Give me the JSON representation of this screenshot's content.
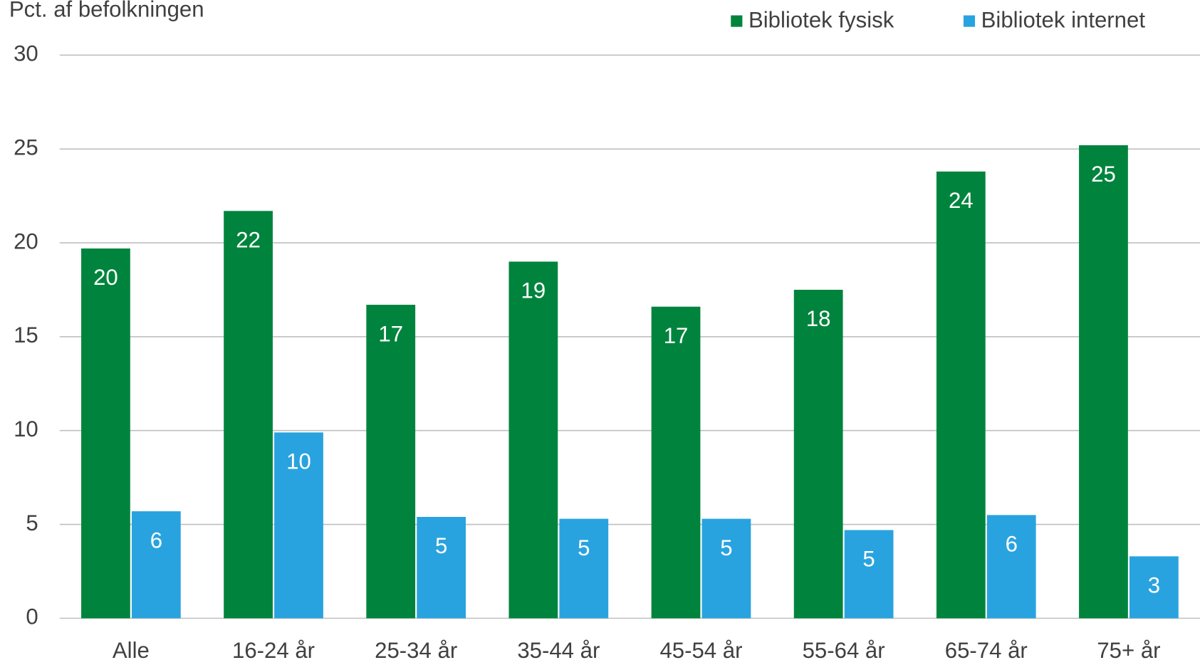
{
  "chart_data": {
    "type": "bar",
    "y_label": "Pct. af befolkningen",
    "categories": [
      "Alle",
      "16-24 år",
      "25-34 år",
      "35-44 år",
      "45-54 år",
      "55-64 år",
      "65-74 år",
      "75+ år"
    ],
    "series": [
      {
        "name": "Bibliotek fysisk",
        "color": "#00843d",
        "values": [
          19.7,
          21.7,
          16.7,
          19.0,
          16.6,
          17.5,
          23.8,
          25.2
        ],
        "value_labels": [
          "20",
          "22",
          "17",
          "19",
          "17",
          "18",
          "24",
          "25"
        ]
      },
      {
        "name": "Bibliotek internet",
        "color": "#29a3df",
        "values": [
          5.7,
          9.9,
          5.4,
          5.3,
          5.3,
          4.7,
          5.5,
          3.3
        ],
        "value_labels": [
          "6",
          "10",
          "5",
          "5",
          "5",
          "5",
          "6",
          "3"
        ]
      }
    ],
    "ylim": [
      0,
      30
    ],
    "yticks": [
      0,
      5,
      10,
      15,
      20,
      25,
      30
    ],
    "grid": true
  }
}
